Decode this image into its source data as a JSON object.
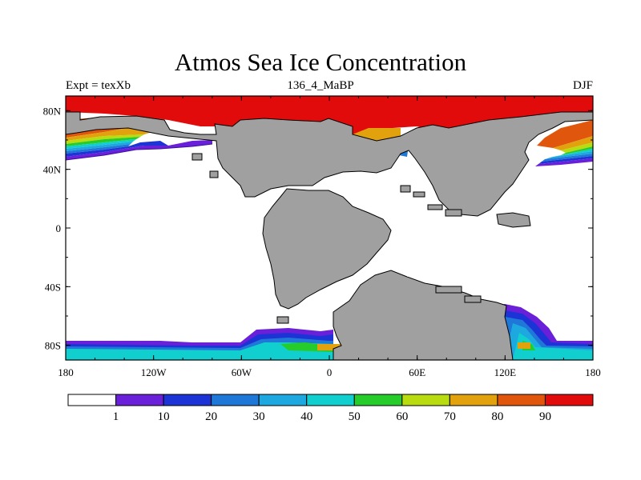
{
  "chart_data": {
    "type": "heatmap",
    "title": "Atmos Sea Ice Concentration",
    "subtitle_left": "Expt = texXb",
    "subtitle_center": "136_4_MaBP",
    "subtitle_right": "DJF",
    "x_axis": {
      "range": [
        -180,
        180
      ],
      "ticks": [
        -180,
        -120,
        -60,
        0,
        60,
        120,
        180
      ],
      "tick_labels": [
        "180",
        "120W",
        "60W",
        "0",
        "60E",
        "120E",
        "180"
      ]
    },
    "y_axis": {
      "range": [
        -90,
        90
      ],
      "ticks": [
        80,
        40,
        0,
        -40,
        -80
      ],
      "tick_labels": [
        "80N",
        "40N",
        "0",
        "40S",
        "80S"
      ]
    },
    "colorbar": {
      "levels": [
        "1",
        "10",
        "20",
        "30",
        "40",
        "50",
        "60",
        "70",
        "80",
        "90"
      ],
      "colors": [
        "#ffffff",
        "#6a1fd8",
        "#1c33d6",
        "#1f78d8",
        "#1ea8e0",
        "#12cfcf",
        "#26cc2a",
        "#b8dc10",
        "#e2a20e",
        "#e0560c",
        "#e10b0b"
      ]
    },
    "land_color": "#a0a0a0",
    "ice_bands": [
      {
        "region": "arctic_cap",
        "value": 95
      },
      {
        "region": "north_pacific_edge",
        "values": [
          90,
          80,
          70,
          60,
          50,
          40,
          30,
          20,
          10,
          1
        ]
      },
      {
        "region": "antarctic_edge",
        "values": [
          90,
          80,
          70,
          60,
          50,
          40,
          30,
          20,
          10,
          1
        ]
      },
      {
        "region": "inland_seas",
        "values": [
          80,
          70,
          60
        ]
      }
    ]
  }
}
